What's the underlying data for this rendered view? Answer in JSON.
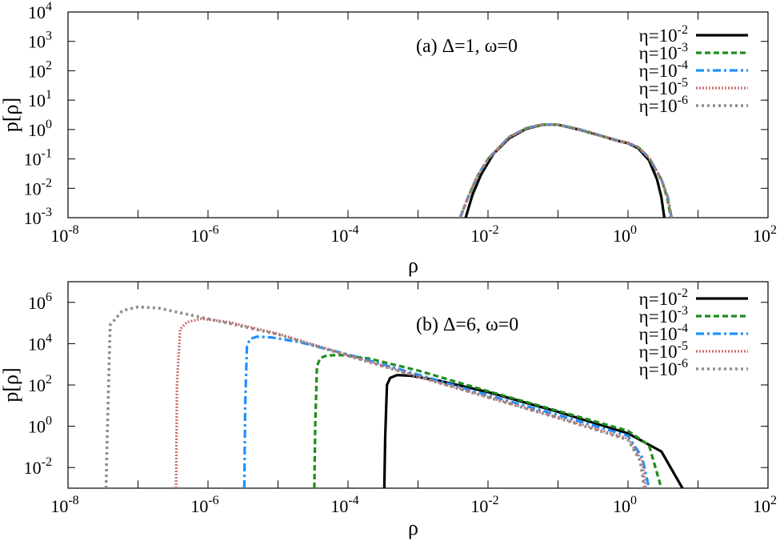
{
  "chart_data": [
    {
      "type": "line",
      "panel": "a",
      "annotation": "(a) Δ=1, ω=0",
      "xlabel": "ρ",
      "ylabel": "p[ρ]",
      "xscale": "log",
      "yscale": "log",
      "xlim": [
        1e-08,
        100
      ],
      "ylim": [
        0.001,
        10000
      ],
      "x_ticks": [
        {
          "value": 1e-08,
          "base": "10",
          "exp": "-8"
        },
        {
          "value": 1e-06,
          "base": "10",
          "exp": "-6"
        },
        {
          "value": 0.0001,
          "base": "10",
          "exp": "-4"
        },
        {
          "value": 0.01,
          "base": "10",
          "exp": "-2"
        },
        {
          "value": 1,
          "base": "10",
          "exp": "0"
        },
        {
          "value": 100,
          "base": "10",
          "exp": "2"
        }
      ],
      "y_ticks": [
        {
          "value": 0.001,
          "base": "10",
          "exp": "-3"
        },
        {
          "value": 0.01,
          "base": "10",
          "exp": "-2"
        },
        {
          "value": 0.1,
          "base": "10",
          "exp": "-1"
        },
        {
          "value": 1,
          "base": "10",
          "exp": "0"
        },
        {
          "value": 10,
          "base": "10",
          "exp": "1"
        },
        {
          "value": 100,
          "base": "10",
          "exp": "2"
        },
        {
          "value": 1000,
          "base": "10",
          "exp": "3"
        },
        {
          "value": 10000,
          "base": "10",
          "exp": "4"
        }
      ],
      "legend_position": "top-right",
      "series": [
        {
          "name_base": "η=10",
          "name_exp": "-2",
          "color": "#000000",
          "dash": "solid",
          "points": [
            [
              0.0048,
              0.001
            ],
            [
              0.006,
              0.006
            ],
            [
              0.008,
              0.03
            ],
            [
              0.012,
              0.15
            ],
            [
              0.02,
              0.5
            ],
            [
              0.035,
              1.05
            ],
            [
              0.06,
              1.45
            ],
            [
              0.1,
              1.45
            ],
            [
              0.2,
              1.0
            ],
            [
              0.4,
              0.62
            ],
            [
              0.7,
              0.42
            ],
            [
              1.0,
              0.34
            ],
            [
              1.4,
              0.23
            ],
            [
              2.0,
              0.09
            ],
            [
              2.6,
              0.02
            ],
            [
              3.0,
              0.005
            ],
            [
              3.3,
              0.001
            ]
          ]
        },
        {
          "name_base": "η=10",
          "name_exp": "-3",
          "color": "#1e8c1e",
          "dash": "dashed",
          "points": [
            [
              0.004,
              0.001
            ],
            [
              0.005,
              0.004
            ],
            [
              0.007,
              0.025
            ],
            [
              0.01,
              0.1
            ],
            [
              0.02,
              0.55
            ],
            [
              0.035,
              1.1
            ],
            [
              0.06,
              1.48
            ],
            [
              0.1,
              1.47
            ],
            [
              0.2,
              1.02
            ],
            [
              0.4,
              0.63
            ],
            [
              0.7,
              0.43
            ],
            [
              1.0,
              0.35
            ],
            [
              1.4,
              0.25
            ],
            [
              2.0,
              0.11
            ],
            [
              3.0,
              0.02
            ],
            [
              3.6,
              0.005
            ],
            [
              4.1,
              0.001
            ]
          ]
        },
        {
          "name_base": "η=10",
          "name_exp": "-4",
          "color": "#1e90ff",
          "dash": "dashdot",
          "points": [
            [
              0.004,
              0.001
            ],
            [
              0.005,
              0.004
            ],
            [
              0.007,
              0.025
            ],
            [
              0.01,
              0.1
            ],
            [
              0.02,
              0.55
            ],
            [
              0.035,
              1.1
            ],
            [
              0.06,
              1.48
            ],
            [
              0.1,
              1.47
            ],
            [
              0.2,
              1.02
            ],
            [
              0.4,
              0.63
            ],
            [
              0.7,
              0.43
            ],
            [
              1.0,
              0.35
            ],
            [
              1.4,
              0.25
            ],
            [
              2.0,
              0.11
            ],
            [
              3.0,
              0.02
            ],
            [
              3.7,
              0.005
            ],
            [
              4.2,
              0.001
            ]
          ]
        },
        {
          "name_base": "η=10",
          "name_exp": "-5",
          "color": "#cd6f6f",
          "dash": "dotted",
          "points": [
            [
              0.004,
              0.001
            ],
            [
              0.005,
              0.004
            ],
            [
              0.007,
              0.025
            ],
            [
              0.01,
              0.1
            ],
            [
              0.02,
              0.55
            ],
            [
              0.035,
              1.1
            ],
            [
              0.06,
              1.48
            ],
            [
              0.1,
              1.47
            ],
            [
              0.2,
              1.02
            ],
            [
              0.4,
              0.63
            ],
            [
              0.7,
              0.43
            ],
            [
              1.0,
              0.35
            ],
            [
              1.4,
              0.25
            ],
            [
              2.0,
              0.11
            ],
            [
              3.0,
              0.02
            ],
            [
              3.7,
              0.005
            ],
            [
              4.2,
              0.001
            ]
          ]
        },
        {
          "name_base": "η=10",
          "name_exp": "-6",
          "color": "#8c8c8c",
          "dash": "dotted-coarse",
          "points": [
            [
              0.004,
              0.001
            ],
            [
              0.005,
              0.004
            ],
            [
              0.007,
              0.025
            ],
            [
              0.01,
              0.1
            ],
            [
              0.02,
              0.55
            ],
            [
              0.035,
              1.1
            ],
            [
              0.06,
              1.48
            ],
            [
              0.1,
              1.47
            ],
            [
              0.2,
              1.02
            ],
            [
              0.4,
              0.63
            ],
            [
              0.7,
              0.43
            ],
            [
              1.0,
              0.35
            ],
            [
              1.4,
              0.25
            ],
            [
              2.0,
              0.11
            ],
            [
              3.0,
              0.02
            ],
            [
              3.7,
              0.005
            ],
            [
              4.2,
              0.001
            ]
          ]
        }
      ]
    },
    {
      "type": "line",
      "panel": "b",
      "annotation": "(b) Δ=6, ω=0",
      "xlabel": "ρ",
      "ylabel": "p[ρ]",
      "xscale": "log",
      "yscale": "log",
      "xlim": [
        1e-08,
        100
      ],
      "ylim": [
        0.001,
        10000000
      ],
      "x_ticks": [
        {
          "value": 1e-08,
          "base": "10",
          "exp": "-8"
        },
        {
          "value": 1e-06,
          "base": "10",
          "exp": "-6"
        },
        {
          "value": 0.0001,
          "base": "10",
          "exp": "-4"
        },
        {
          "value": 0.01,
          "base": "10",
          "exp": "-2"
        },
        {
          "value": 1,
          "base": "10",
          "exp": "0"
        },
        {
          "value": 100,
          "base": "10",
          "exp": "2"
        }
      ],
      "y_ticks": [
        {
          "value": 0.01,
          "base": "10",
          "exp": "-2"
        },
        {
          "value": 1,
          "base": "10",
          "exp": "0"
        },
        {
          "value": 100,
          "base": "10",
          "exp": "2"
        },
        {
          "value": 10000,
          "base": "10",
          "exp": "4"
        },
        {
          "value": 1000000,
          "base": "10",
          "exp": "6"
        }
      ],
      "legend_position": "top-right",
      "series": [
        {
          "name_base": "η=10",
          "name_exp": "-2",
          "color": "#000000",
          "dash": "solid",
          "points": [
            [
              0.00033,
              0.001
            ],
            [
              0.00034,
              0.3
            ],
            [
              0.00036,
              100
            ],
            [
              0.0004,
              220
            ],
            [
              0.0005,
              300
            ],
            [
              0.0008,
              280
            ],
            [
              0.002,
              160
            ],
            [
              0.01,
              45
            ],
            [
              0.1,
              5
            ],
            [
              1,
              0.45
            ],
            [
              3,
              0.06
            ],
            [
              6,
              0.001
            ]
          ]
        },
        {
          "name_base": "η=10",
          "name_exp": "-3",
          "color": "#1e8c1e",
          "dash": "dashed",
          "points": [
            [
              3.3e-05,
              0.001
            ],
            [
              3.4e-05,
              1
            ],
            [
              3.6e-05,
              800
            ],
            [
              4e-05,
              2000
            ],
            [
              5e-05,
              2700
            ],
            [
              8e-05,
              2800
            ],
            [
              0.0002,
              1900
            ],
            [
              0.001,
              500
            ],
            [
              0.01,
              50
            ],
            [
              0.1,
              5.5
            ],
            [
              1,
              0.6
            ],
            [
              2,
              0.12
            ],
            [
              3,
              0.001
            ]
          ]
        },
        {
          "name_base": "η=10",
          "name_exp": "-4",
          "color": "#1e90ff",
          "dash": "dashdot",
          "points": [
            [
              3.3e-06,
              0.001
            ],
            [
              3.4e-06,
              10
            ],
            [
              3.6e-06,
              8000
            ],
            [
              4e-06,
              17000
            ],
            [
              5e-06,
              22000
            ],
            [
              8e-06,
              20000
            ],
            [
              2e-05,
              12000
            ],
            [
              0.0001,
              3000
            ],
            [
              0.001,
              320
            ],
            [
              0.01,
              32
            ],
            [
              0.1,
              3.5
            ],
            [
              1,
              0.35
            ],
            [
              1.6,
              0.03
            ],
            [
              2.0,
              0.001
            ]
          ]
        },
        {
          "name_base": "η=10",
          "name_exp": "-5",
          "color": "#cd6f6f",
          "dash": "dotted",
          "points": [
            [
              3.5e-07,
              0.001
            ],
            [
              3.6e-07,
              100
            ],
            [
              4e-07,
              50000
            ],
            [
              5e-07,
              110000
            ],
            [
              8e-07,
              160000
            ],
            [
              2e-06,
              110000
            ],
            [
              1e-05,
              30000
            ],
            [
              0.0001,
              2800
            ],
            [
              0.001,
              260
            ],
            [
              0.01,
              26
            ],
            [
              0.1,
              2.7
            ],
            [
              1,
              0.25
            ],
            [
              1.6,
              0.02
            ],
            [
              1.8,
              0.001
            ]
          ]
        },
        {
          "name_base": "η=10",
          "name_exp": "-6",
          "color": "#8c8c8c",
          "dash": "dotted-coarse",
          "points": [
            [
              3.5e-08,
              0.001
            ],
            [
              3.6e-08,
              0.1
            ],
            [
              4e-08,
              80000
            ],
            [
              6e-08,
              400000
            ],
            [
              1e-07,
              600000
            ],
            [
              2e-07,
              520000
            ],
            [
              1e-06,
              160000
            ],
            [
              1e-05,
              28000
            ],
            [
              0.0001,
              2600
            ],
            [
              0.001,
              250
            ],
            [
              0.01,
              25
            ],
            [
              0.1,
              2.5
            ],
            [
              1,
              0.22
            ],
            [
              1.5,
              0.02
            ],
            [
              1.7,
              0.001
            ]
          ]
        }
      ]
    }
  ]
}
